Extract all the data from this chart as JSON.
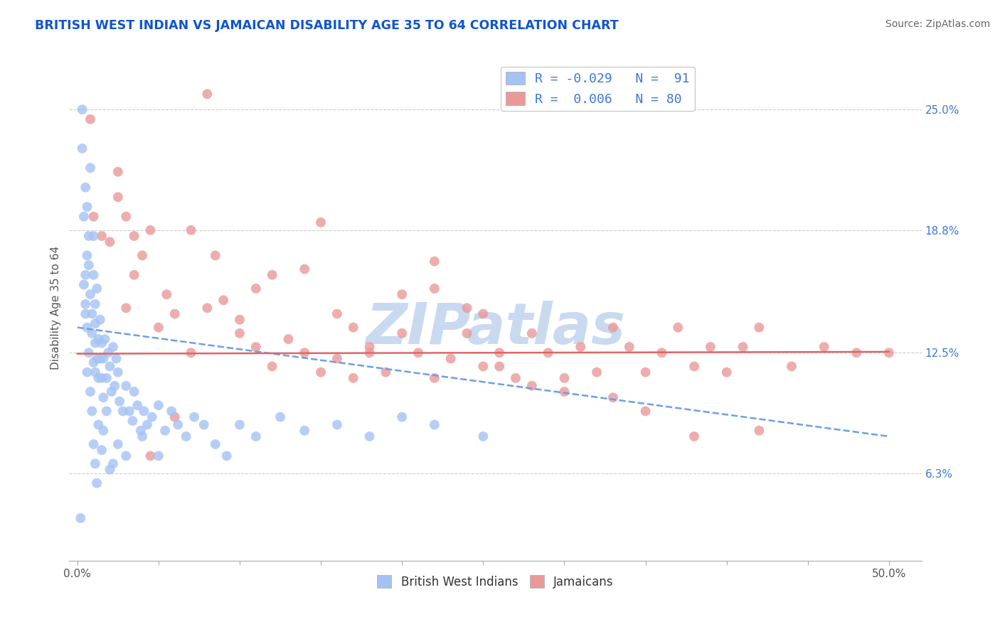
{
  "title": "BRITISH WEST INDIAN VS JAMAICAN DISABILITY AGE 35 TO 64 CORRELATION CHART",
  "source_text": "Source: ZipAtlas.com",
  "ylabel": "Disability Age 35 to 64",
  "y_ticks": [
    0.063,
    0.125,
    0.188,
    0.25
  ],
  "y_tick_labels": [
    "6.3%",
    "12.5%",
    "18.8%",
    "25.0%"
  ],
  "x_ticks": [
    0,
    5,
    10,
    15,
    20,
    25,
    30,
    35,
    40,
    45,
    50
  ],
  "xlim": [
    -0.5,
    52.0
  ],
  "ylim": [
    0.018,
    0.278
  ],
  "color_blue": "#a4c2f4",
  "color_pink": "#ea9999",
  "color_blue_line": "#6d9eeb",
  "color_pink_line": "#e06666",
  "color_grid": "#cccccc",
  "color_title": "#1155cc",
  "color_source": "#666666",
  "color_right_ticks": "#3c78d8",
  "watermark_color": "#c9d9f0",
  "blue_x": [
    0.2,
    0.3,
    0.4,
    0.5,
    0.5,
    0.5,
    0.6,
    0.6,
    0.7,
    0.7,
    0.8,
    0.8,
    0.9,
    0.9,
    1.0,
    1.0,
    1.0,
    1.1,
    1.1,
    1.1,
    1.1,
    1.2,
    1.2,
    1.3,
    1.3,
    1.4,
    1.4,
    1.5,
    1.5,
    1.6,
    1.6,
    1.7,
    1.8,
    1.9,
    2.0,
    2.1,
    2.2,
    2.3,
    2.4,
    2.5,
    2.6,
    2.8,
    3.0,
    3.2,
    3.4,
    3.5,
    3.7,
    3.9,
    4.1,
    4.3,
    4.6,
    5.0,
    5.4,
    5.8,
    6.2,
    6.7,
    7.2,
    7.8,
    8.5,
    9.2,
    10.0,
    11.0,
    12.5,
    14.0,
    16.0,
    18.0,
    20.0,
    22.0,
    25.0,
    1.0,
    1.1,
    1.2,
    0.8,
    0.9,
    0.7,
    0.6,
    1.3,
    1.5,
    2.0,
    2.5,
    3.0,
    4.0,
    5.0,
    0.5,
    1.8,
    2.2,
    1.6,
    0.4,
    0.3,
    0.6
  ],
  "blue_y": [
    0.04,
    0.23,
    0.195,
    0.21,
    0.165,
    0.145,
    0.2,
    0.175,
    0.185,
    0.17,
    0.155,
    0.22,
    0.135,
    0.145,
    0.12,
    0.165,
    0.185,
    0.13,
    0.14,
    0.115,
    0.15,
    0.122,
    0.158,
    0.132,
    0.112,
    0.142,
    0.122,
    0.13,
    0.112,
    0.122,
    0.102,
    0.132,
    0.112,
    0.125,
    0.118,
    0.105,
    0.128,
    0.108,
    0.122,
    0.115,
    0.1,
    0.095,
    0.108,
    0.095,
    0.09,
    0.105,
    0.098,
    0.085,
    0.095,
    0.088,
    0.092,
    0.098,
    0.085,
    0.095,
    0.088,
    0.082,
    0.092,
    0.088,
    0.078,
    0.072,
    0.088,
    0.082,
    0.092,
    0.085,
    0.088,
    0.082,
    0.092,
    0.088,
    0.082,
    0.078,
    0.068,
    0.058,
    0.105,
    0.095,
    0.125,
    0.115,
    0.088,
    0.075,
    0.065,
    0.078,
    0.072,
    0.082,
    0.072,
    0.15,
    0.095,
    0.068,
    0.085,
    0.16,
    0.25,
    0.138
  ],
  "pink_x": [
    0.8,
    1.0,
    1.5,
    2.0,
    2.5,
    3.0,
    3.5,
    4.0,
    4.5,
    5.0,
    6.0,
    7.0,
    8.0,
    9.0,
    10.0,
    11.0,
    12.0,
    13.0,
    14.0,
    15.0,
    16.0,
    17.0,
    18.0,
    19.0,
    20.0,
    21.0,
    22.0,
    23.0,
    24.0,
    25.0,
    26.0,
    27.0,
    28.0,
    29.0,
    30.0,
    31.0,
    32.0,
    33.0,
    34.0,
    35.0,
    36.0,
    37.0,
    38.0,
    39.0,
    40.0,
    41.0,
    42.0,
    44.0,
    46.0,
    48.0,
    3.5,
    5.5,
    8.5,
    12.0,
    16.0,
    20.0,
    25.0,
    30.0,
    35.0,
    42.0,
    7.0,
    14.0,
    22.0,
    28.0,
    10.0,
    17.0,
    24.0,
    33.0,
    3.0,
    6.0,
    11.0,
    18.0,
    26.0,
    38.0,
    2.5,
    4.5,
    8.0,
    15.0,
    22.0,
    50.0
  ],
  "pink_y": [
    0.245,
    0.195,
    0.185,
    0.182,
    0.205,
    0.195,
    0.185,
    0.175,
    0.188,
    0.138,
    0.145,
    0.125,
    0.148,
    0.152,
    0.135,
    0.128,
    0.118,
    0.132,
    0.125,
    0.115,
    0.122,
    0.112,
    0.125,
    0.115,
    0.135,
    0.125,
    0.112,
    0.122,
    0.135,
    0.118,
    0.125,
    0.112,
    0.135,
    0.125,
    0.112,
    0.128,
    0.115,
    0.138,
    0.128,
    0.115,
    0.125,
    0.138,
    0.118,
    0.128,
    0.115,
    0.128,
    0.138,
    0.118,
    0.128,
    0.125,
    0.165,
    0.155,
    0.175,
    0.165,
    0.145,
    0.155,
    0.145,
    0.105,
    0.095,
    0.085,
    0.188,
    0.168,
    0.158,
    0.108,
    0.142,
    0.138,
    0.148,
    0.102,
    0.148,
    0.092,
    0.158,
    0.128,
    0.118,
    0.082,
    0.218,
    0.072,
    0.258,
    0.192,
    0.172,
    0.125
  ],
  "blue_line_x0": 0.0,
  "blue_line_x1": 50.0,
  "blue_line_y0": 0.138,
  "blue_line_y1": 0.082,
  "pink_line_x0": 0.0,
  "pink_line_x1": 50.0,
  "pink_line_y0": 0.1245,
  "pink_line_y1": 0.1255
}
